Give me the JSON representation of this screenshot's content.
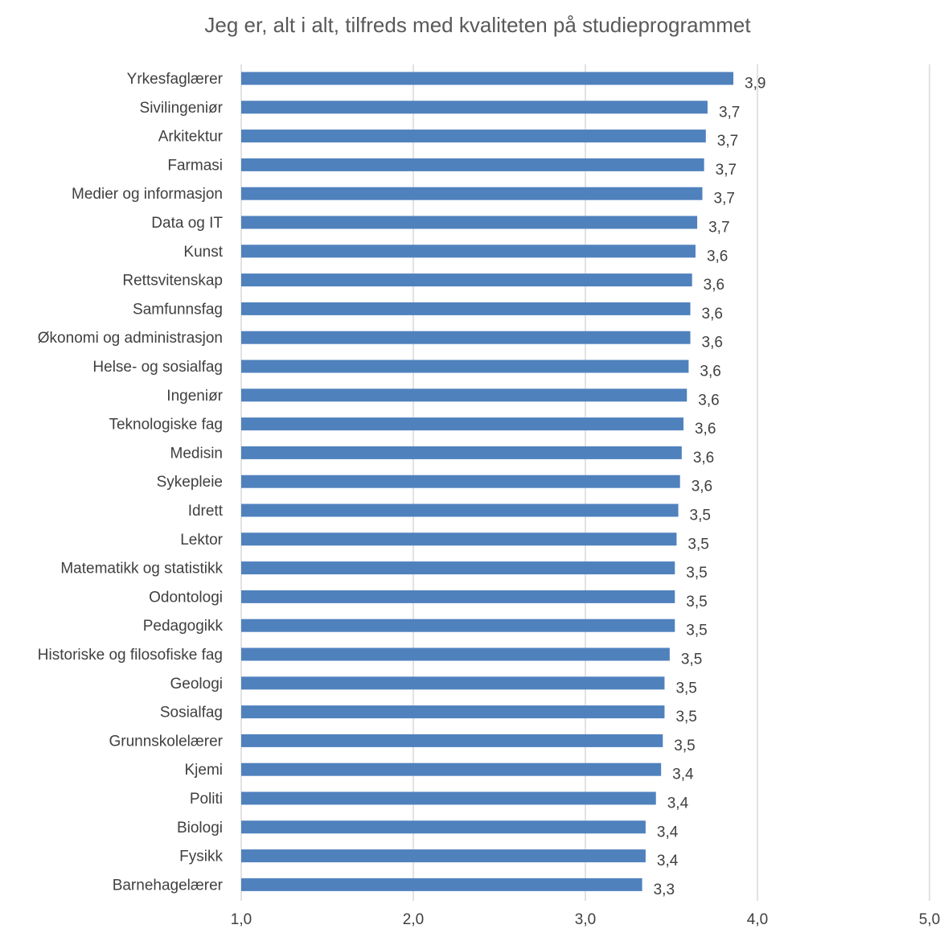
{
  "chart_data": {
    "type": "bar",
    "orientation": "horizontal",
    "title": "Jeg er, alt i alt, tilfreds med kvaliteten på studieprogrammet",
    "xlabel": "",
    "ylabel": "",
    "xlim": [
      1.0,
      5.0
    ],
    "x_ticks": [
      "1,0",
      "2,0",
      "3,0",
      "4,0",
      "5,0"
    ],
    "grid": true,
    "legend": "none",
    "bar_color": "#4f81bd",
    "categories": [
      "Yrkesfaglærer",
      "Sivilingeniør",
      "Arkitektur",
      "Farmasi",
      "Medier og informasjon",
      "Data og IT",
      "Kunst",
      "Rettsvitenskap",
      "Samfunnsfag",
      "Økonomi og administrasjon",
      "Helse- og sosialfag",
      "Ingeniør",
      "Teknologiske fag",
      "Medisin",
      "Sykepleie",
      "Idrett",
      "Lektor",
      "Matematikk og statistikk",
      "Odontologi",
      "Pedagogikk",
      "Historiske og filosofiske fag",
      "Geologi",
      "Sosialfag",
      "Grunnskolelærer",
      "Kjemi",
      "Politi",
      "Biologi",
      "Fysikk",
      "Barnehagelærer"
    ],
    "values": [
      3.86,
      3.71,
      3.7,
      3.69,
      3.68,
      3.65,
      3.64,
      3.62,
      3.61,
      3.61,
      3.6,
      3.59,
      3.57,
      3.56,
      3.55,
      3.54,
      3.53,
      3.52,
      3.52,
      3.52,
      3.49,
      3.46,
      3.46,
      3.45,
      3.44,
      3.41,
      3.35,
      3.35,
      3.33
    ],
    "data_labels": [
      "3,9",
      "3,7",
      "3,7",
      "3,7",
      "3,7",
      "3,7",
      "3,6",
      "3,6",
      "3,6",
      "3,6",
      "3,6",
      "3,6",
      "3,6",
      "3,6",
      "3,6",
      "3,5",
      "3,5",
      "3,5",
      "3,5",
      "3,5",
      "3,5",
      "3,5",
      "3,5",
      "3,5",
      "3,4",
      "3,4",
      "3,4",
      "3,4",
      "3,3"
    ]
  }
}
